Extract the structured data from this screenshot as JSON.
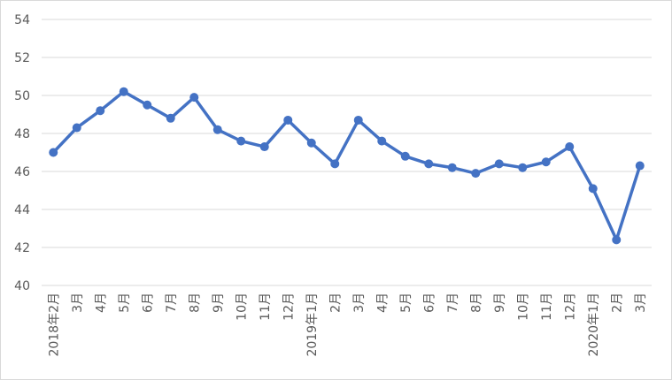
{
  "chart_data": {
    "type": "line",
    "categories": [
      "2018年2月",
      "3月",
      "4月",
      "5月",
      "6月",
      "7月",
      "8月",
      "9月",
      "10月",
      "11月",
      "12月",
      "2019年1月",
      "2月",
      "3月",
      "4月",
      "5月",
      "6月",
      "7月",
      "8月",
      "9月",
      "10月",
      "11月",
      "12月",
      "2020年1月",
      "2月",
      "3月"
    ],
    "values": [
      47.0,
      48.3,
      49.2,
      50.2,
      49.5,
      48.8,
      49.9,
      48.2,
      47.6,
      47.3,
      48.7,
      47.5,
      46.4,
      48.7,
      47.6,
      46.8,
      46.4,
      46.2,
      45.9,
      46.4,
      46.2,
      46.5,
      47.3,
      45.1,
      42.4,
      46.3
    ],
    "color": "#4472c4",
    "ylim": [
      40,
      54
    ],
    "yticks": [
      40,
      42,
      44,
      46,
      48,
      50,
      52,
      54
    ],
    "grid": true
  }
}
